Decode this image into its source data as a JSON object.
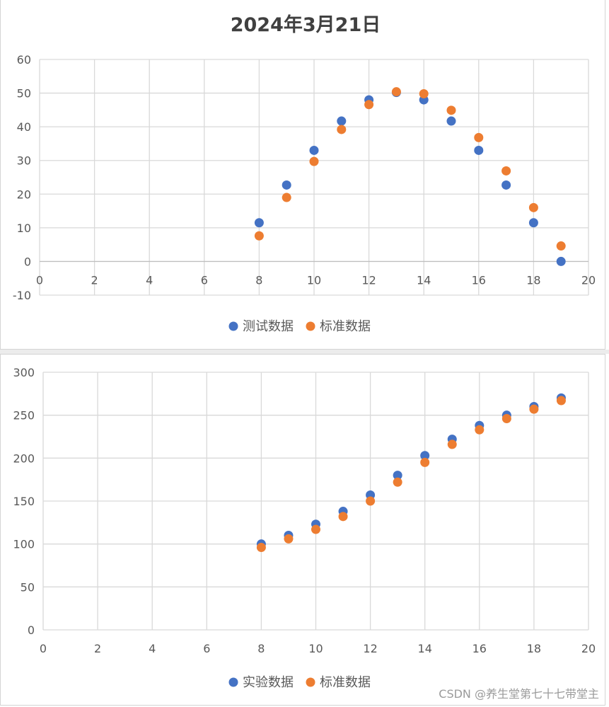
{
  "chart_data": [
    {
      "type": "scatter",
      "title": "2024年3月21日",
      "xlim": [
        0,
        20
      ],
      "ylim": [
        -10,
        60
      ],
      "x_ticks": [
        0,
        2,
        4,
        6,
        8,
        10,
        12,
        14,
        16,
        18,
        20
      ],
      "y_ticks": [
        -10,
        0,
        10,
        20,
        30,
        40,
        50,
        60
      ],
      "grid": true,
      "legend": "bottom",
      "series": [
        {
          "name": "测试数据",
          "color": "#4472c4",
          "x": [
            8,
            9,
            10,
            11,
            12,
            13,
            14,
            15,
            16,
            17,
            18,
            19
          ],
          "y": [
            11.5,
            22.7,
            33.0,
            41.7,
            48.0,
            50.2,
            48.0,
            41.7,
            33.0,
            22.7,
            11.5,
            0.0
          ]
        },
        {
          "name": "标准数据",
          "color": "#ed7d31",
          "x": [
            8,
            9,
            10,
            11,
            12,
            13,
            14,
            15,
            16,
            17,
            18,
            19
          ],
          "y": [
            7.6,
            19.0,
            29.7,
            39.2,
            46.6,
            50.4,
            49.8,
            44.9,
            36.8,
            26.9,
            16.0,
            4.6
          ]
        }
      ]
    },
    {
      "type": "scatter",
      "title": "",
      "xlim": [
        0,
        20
      ],
      "ylim": [
        0,
        300
      ],
      "x_ticks": [
        0,
        2,
        4,
        6,
        8,
        10,
        12,
        14,
        16,
        18,
        20
      ],
      "y_ticks": [
        0,
        50,
        100,
        150,
        200,
        250,
        300
      ],
      "grid": true,
      "legend": "bottom",
      "series": [
        {
          "name": "实验数据",
          "color": "#4472c4",
          "x": [
            8,
            9,
            10,
            11,
            12,
            13,
            14,
            15,
            16,
            17,
            18,
            19
          ],
          "y": [
            100,
            110,
            123,
            138,
            157,
            180,
            203,
            222,
            238,
            250,
            260,
            270
          ]
        },
        {
          "name": "标准数据",
          "color": "#ed7d31",
          "x": [
            8,
            9,
            10,
            11,
            12,
            13,
            14,
            15,
            16,
            17,
            18,
            19
          ],
          "y": [
            96,
            106,
            117,
            132,
            150,
            172,
            195,
            216,
            233,
            246,
            257,
            267
          ]
        }
      ]
    }
  ],
  "watermark": "CSDN @养生堂第七十七带堂主"
}
